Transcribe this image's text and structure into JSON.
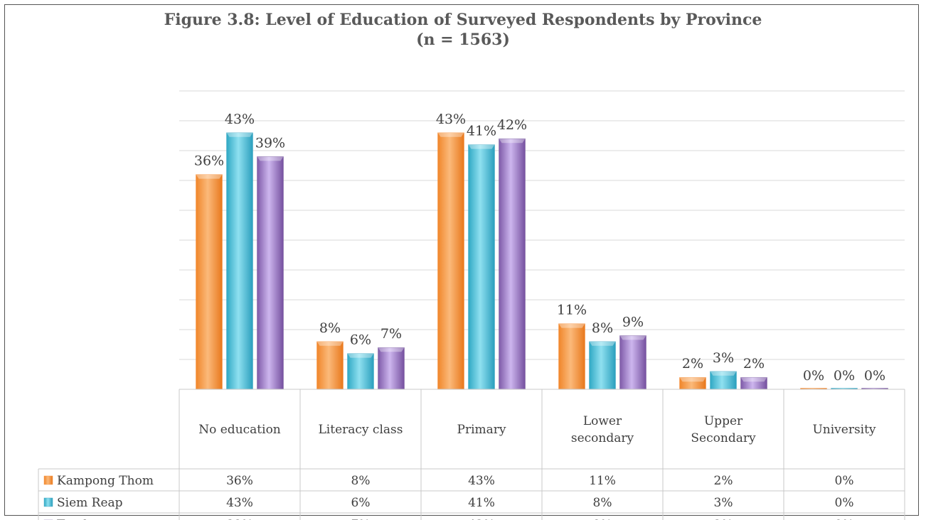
{
  "chart_data": {
    "type": "bar",
    "title": "Figure 3.8: Level of Education of Surveyed Respondents by Province",
    "subtitle": "(n = 1563)",
    "categories": [
      [
        "No education"
      ],
      [
        "Literacy class"
      ],
      [
        "Primary"
      ],
      [
        "Lower",
        "secondary"
      ],
      [
        "Upper",
        "Secondary"
      ],
      [
        "University"
      ]
    ],
    "series": [
      {
        "name": "Kampong Thom",
        "values": [
          36,
          8,
          43,
          11,
          2,
          0
        ],
        "labels": [
          "36%",
          "8%",
          "43%",
          "11%",
          "2%",
          "0%"
        ],
        "color": "#f79646"
      },
      {
        "name": "Siem Reap",
        "values": [
          43,
          6,
          41,
          8,
          3,
          0
        ],
        "labels": [
          "43%",
          "6%",
          "41%",
          "8%",
          "3%",
          "0%"
        ],
        "color": "#4bacc6"
      },
      {
        "name": "Total",
        "values": [
          39,
          7,
          42,
          9,
          2,
          0
        ],
        "labels": [
          "39%",
          "7%",
          "42%",
          "9%",
          "2%",
          "0%"
        ],
        "color": "#8064a2"
      }
    ],
    "ylim": [
      0,
      50
    ],
    "grid": true,
    "legend": "data-table"
  }
}
